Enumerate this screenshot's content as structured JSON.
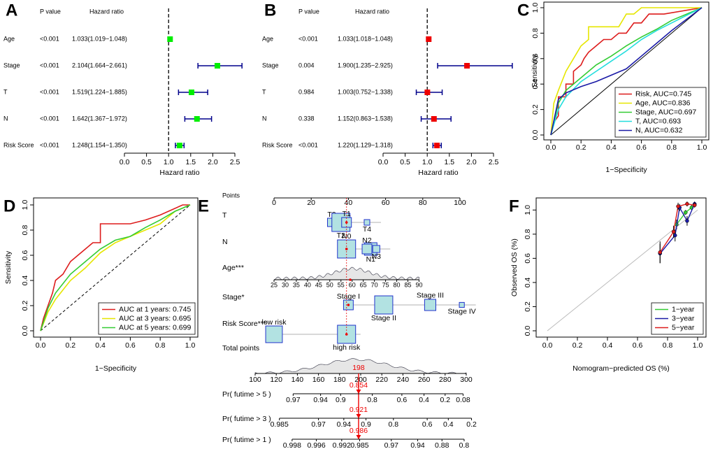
{
  "chart_data": [
    {
      "type": "forest",
      "panel": "A",
      "column_headers": [
        "P value",
        "Hazard ratio"
      ],
      "categories": [
        "Age",
        "Stage",
        "T",
        "N",
        "Risk Score"
      ],
      "p_values": [
        "<0.001",
        "<0.001",
        "<0.001",
        "<0.001",
        "<0.001"
      ],
      "values": [
        1.033,
        2.104,
        1.519,
        1.642,
        1.248
      ],
      "lower": [
        1.019,
        1.664,
        1.224,
        1.367,
        1.154
      ],
      "upper": [
        1.048,
        2.661,
        1.885,
        1.972,
        1.35
      ],
      "value_labels": [
        "1.033(1.019−1.048)",
        "2.104(1.664−2.661)",
        "1.519(1.224−1.885)",
        "1.642(1.367−1.972)",
        "1.248(1.154−1.350)"
      ],
      "color": "#00ee00",
      "ci_color": "#00008b",
      "ref": 1,
      "xlim": [
        0,
        2.5
      ],
      "xticks": [
        {
          "value": 0,
          "label": "0.0"
        },
        0.5,
        {
          "value": 1,
          "label": "1.0"
        },
        1.5,
        {
          "value": 2,
          "label": "2.0"
        },
        2.5
      ],
      "xlabel": "Hazard ratio"
    },
    {
      "type": "forest",
      "panel": "B",
      "column_headers": [
        "P value",
        "Hazard ratio"
      ],
      "categories": [
        "Age",
        "Stage",
        "T",
        "N",
        "Risk Score"
      ],
      "p_values": [
        "<0.001",
        "0.004",
        "0.984",
        "0.338",
        "<0.001"
      ],
      "values": [
        1.033,
        1.9,
        1.003,
        1.152,
        1.22
      ],
      "lower": [
        1.018,
        1.235,
        0.752,
        0.863,
        1.129
      ],
      "upper": [
        1.048,
        2.925,
        1.338,
        1.538,
        1.318
      ],
      "value_labels": [
        "1.033(1.018−1.048)",
        "1.900(1.235−2.925)",
        "1.003(0.752−1.338)",
        "1.152(0.863−1.538)",
        "1.220(1.129−1.318)"
      ],
      "color": "#ee0000",
      "ci_color": "#00008b",
      "ref": 1,
      "xlim": [
        0,
        2.5
      ],
      "xticks": [
        {
          "value": 0,
          "label": "0.0"
        },
        0.5,
        {
          "value": 1,
          "label": "1.0"
        },
        1.5,
        {
          "value": 2,
          "label": "2.0"
        },
        2.5
      ],
      "xlabel": "Hazard ratio"
    },
    {
      "type": "roc",
      "panel": "C",
      "xlabel": "1−Specificity",
      "ylabel": "Sensitivity",
      "xlim": [
        0,
        1
      ],
      "ylim": [
        0,
        1
      ],
      "xticks": [
        {
          "value": 0,
          "label": "0.0"
        },
        0.2,
        0.4,
        0.6,
        0.8,
        {
          "value": 1,
          "label": "1.0"
        }
      ],
      "yticks": [
        {
          "value": 0,
          "label": "0.0"
        },
        0.2,
        0.4,
        0.6,
        0.8,
        {
          "value": 1,
          "label": "1.0"
        }
      ],
      "diagonal": "solid",
      "legend": "bottom right",
      "series": [
        {
          "name": "Risk, AUC=0.745",
          "color": "#dd1c1c",
          "x": [
            0,
            0.02,
            0.05,
            0.05,
            0.1,
            0.1,
            0.15,
            0.15,
            0.2,
            0.22,
            0.25,
            0.3,
            0.35,
            0.4,
            0.45,
            0.5,
            0.55,
            0.6,
            0.65,
            0.75,
            1
          ],
          "y": [
            0,
            0.1,
            0.15,
            0.3,
            0.3,
            0.4,
            0.4,
            0.5,
            0.55,
            0.6,
            0.65,
            0.7,
            0.75,
            0.75,
            0.8,
            0.8,
            0.88,
            0.88,
            0.95,
            0.95,
            1
          ]
        },
        {
          "name": "Age, AUC=0.836",
          "color": "#e6e600",
          "x": [
            0,
            0.02,
            0.05,
            0.1,
            0.15,
            0.2,
            0.25,
            0.25,
            0.45,
            0.5,
            0.55,
            0.6,
            1
          ],
          "y": [
            0,
            0.25,
            0.35,
            0.5,
            0.6,
            0.7,
            0.75,
            0.85,
            0.85,
            0.95,
            0.95,
            1,
            1
          ]
        },
        {
          "name": "Stage, AUC=0.697",
          "color": "#33cc33",
          "x": [
            0,
            0.05,
            0.1,
            0.2,
            0.3,
            0.4,
            0.5,
            0.6,
            0.7,
            0.8,
            0.9,
            1
          ],
          "y": [
            0,
            0.25,
            0.35,
            0.45,
            0.55,
            0.62,
            0.7,
            0.77,
            0.83,
            0.9,
            0.95,
            1
          ]
        },
        {
          "name": "T, AUC=0.693",
          "color": "#22dddd",
          "x": [
            0,
            0.05,
            0.1,
            0.2,
            0.3,
            0.4,
            0.5,
            0.6,
            0.7,
            0.8,
            0.9,
            1
          ],
          "y": [
            0,
            0.2,
            0.3,
            0.42,
            0.5,
            0.58,
            0.66,
            0.75,
            0.82,
            0.88,
            0.94,
            1
          ]
        },
        {
          "name": "N, AUC=0.632",
          "color": "#1a1aa6",
          "x": [
            0,
            0.05,
            0.1,
            0.2,
            0.3,
            0.4,
            0.5,
            0.6,
            0.7,
            0.8,
            0.9,
            1
          ],
          "y": [
            0,
            0.28,
            0.33,
            0.38,
            0.42,
            0.47,
            0.52,
            0.62,
            0.72,
            0.82,
            0.91,
            1
          ]
        }
      ]
    },
    {
      "type": "roc",
      "panel": "D",
      "xlabel": "1−Specificity",
      "ylabel": "Sensitivity",
      "xlim": [
        0,
        1
      ],
      "ylim": [
        0,
        1
      ],
      "xticks": [
        {
          "value": 0,
          "label": "0.0"
        },
        0.2,
        0.4,
        0.6,
        0.8,
        {
          "value": 1,
          "label": "1.0"
        }
      ],
      "yticks": [
        {
          "value": 0,
          "label": "0.0"
        },
        0.2,
        0.4,
        0.6,
        0.8,
        {
          "value": 1,
          "label": "1.0"
        }
      ],
      "diagonal": "dashed",
      "legend": "bottom right",
      "series": [
        {
          "name": "AUC at 1 years: 0.745",
          "color": "#dd1c1c",
          "x": [
            0,
            0.02,
            0.05,
            0.08,
            0.1,
            0.15,
            0.2,
            0.25,
            0.3,
            0.35,
            0.4,
            0.4,
            0.5,
            0.6,
            0.7,
            0.8,
            0.95,
            1
          ],
          "y": [
            0,
            0.1,
            0.2,
            0.3,
            0.4,
            0.45,
            0.55,
            0.6,
            0.65,
            0.7,
            0.7,
            0.85,
            0.85,
            0.85,
            0.88,
            0.92,
            1,
            1
          ]
        },
        {
          "name": "AUC at 3 years: 0.695",
          "color": "#e6e600",
          "x": [
            0,
            0.05,
            0.1,
            0.2,
            0.3,
            0.4,
            0.5,
            0.6,
            0.7,
            0.8,
            0.9,
            1
          ],
          "y": [
            0,
            0.15,
            0.25,
            0.4,
            0.5,
            0.62,
            0.7,
            0.75,
            0.8,
            0.85,
            0.95,
            1
          ]
        },
        {
          "name": "AUC at 5 years: 0.699",
          "color": "#33cc33",
          "x": [
            0,
            0.05,
            0.1,
            0.2,
            0.3,
            0.4,
            0.5,
            0.6,
            0.7,
            0.8,
            0.9,
            1
          ],
          "y": [
            0,
            0.18,
            0.3,
            0.45,
            0.55,
            0.65,
            0.72,
            0.75,
            0.82,
            0.88,
            0.95,
            1
          ]
        }
      ]
    },
    {
      "type": "nomogram",
      "panel": "E",
      "points_label": "Points",
      "points_lim": [
        0,
        100
      ],
      "points_ticks": [
        0,
        20,
        40,
        60,
        80,
        100
      ],
      "variables": [
        {
          "name": "T",
          "levels": [
            "T3",
            "T2",
            "T1",
            "T4"
          ],
          "points": [
            31,
            36,
            39,
            50
          ],
          "weights": [
            0.11,
            0.52,
            0.15,
            0.05
          ],
          "patient_points": 39
        },
        {
          "name": "N",
          "levels": [
            "N0",
            "N1",
            "N2",
            "N3"
          ],
          "points": [
            39,
            52,
            50,
            55
          ],
          "weights": [
            0.52,
            0.25,
            0.15,
            0.08
          ],
          "patient_points": 39
        },
        {
          "name": "Age***",
          "ticks": [
            25,
            30,
            35,
            40,
            45,
            50,
            55,
            60,
            65,
            70,
            75,
            80,
            85,
            90
          ],
          "values_range": [
            25,
            90
          ],
          "points_range": [
            0,
            78
          ],
          "patient_points": 41
        },
        {
          "name": "Stage*",
          "levels": [
            "Stage I",
            "Stage II",
            "Stage III",
            "Stage IV"
          ],
          "points": [
            40,
            59,
            84,
            101
          ],
          "weights": [
            0.15,
            0.52,
            0.2,
            0.04
          ],
          "patient_points": 40
        },
        {
          "name": "Risk Score***",
          "levels": [
            "low risk",
            "high risk"
          ],
          "points": [
            0,
            39
          ],
          "weights": [
            0.44,
            0.52
          ],
          "patient_points": 39
        }
      ],
      "total_label": "Total points",
      "total_lim": [
        100,
        300
      ],
      "total_ticks": [
        100,
        120,
        140,
        160,
        180,
        200,
        220,
        240,
        260,
        280,
        300
      ],
      "patient_total": 198,
      "probabilities": [
        {
          "name": "Pr( futime > 5 )",
          "ticks": [
            0.97,
            0.94,
            0.9,
            0.8,
            0.6,
            0.4,
            0.2,
            0.08
          ],
          "tick_points": [
            136,
            162,
            181,
            211,
            239,
            260,
            280,
            297
          ],
          "patient_value": 0.854
        },
        {
          "name": "Pr( futime > 3 )",
          "ticks": [
            0.985,
            0.97,
            0.94,
            0.9,
            0.8,
            0.6,
            0.4,
            0.2
          ],
          "tick_points": [
            123,
            160,
            184,
            205,
            231,
            263,
            283,
            305
          ],
          "patient_value": 0.921
        },
        {
          "name": "Pr( futime > 1 )",
          "ticks": [
            0.998,
            0.996,
            0.992,
            0.985,
            0.97,
            0.94,
            0.88,
            0.8
          ],
          "tick_points": [
            135,
            158,
            182,
            199,
            229,
            254,
            277,
            298
          ],
          "patient_value": 0.986
        }
      ]
    },
    {
      "type": "calibration",
      "panel": "F",
      "xlabel": "Nomogram−predicted OS (%)",
      "ylabel": "Observed OS (%)",
      "xlim": [
        0,
        1
      ],
      "ylim": [
        0,
        1.1
      ],
      "xticks": [
        {
          "value": 0,
          "label": "0.0"
        },
        0.2,
        0.4,
        0.6,
        0.8,
        {
          "value": 1,
          "label": "1.0"
        }
      ],
      "yticks": [
        {
          "value": 0,
          "label": "0.0"
        },
        0.2,
        0.4,
        0.6,
        0.8,
        {
          "value": 1,
          "label": "1.0"
        }
      ],
      "legend": "bottom right",
      "series": [
        {
          "name": "1−year",
          "color": "#33cc33",
          "x": [
            0.86,
            0.92,
            0.96,
            0.98
          ],
          "y": [
            0.88,
            0.98,
            1.02,
            1.04
          ],
          "errors": [
            0.04,
            0.02,
            0.02,
            0.01
          ]
        },
        {
          "name": "3−year",
          "color": "#1a1aa6",
          "x": [
            0.75,
            0.85,
            0.88,
            0.93,
            0.98
          ],
          "y": [
            0.64,
            0.79,
            1.02,
            0.91,
            1.05
          ],
          "errors": [
            0.08,
            0.05,
            0.03,
            0.04,
            0.02
          ]
        },
        {
          "name": "5−year",
          "color": "#dd1c1c",
          "x": [
            0.75,
            0.84,
            0.87,
            0.93,
            0.98
          ],
          "y": [
            0.65,
            0.82,
            1.03,
            1.05,
            1.04
          ],
          "errors": [
            0.09,
            0.05,
            0.03,
            0.02,
            0.02
          ]
        }
      ]
    }
  ]
}
